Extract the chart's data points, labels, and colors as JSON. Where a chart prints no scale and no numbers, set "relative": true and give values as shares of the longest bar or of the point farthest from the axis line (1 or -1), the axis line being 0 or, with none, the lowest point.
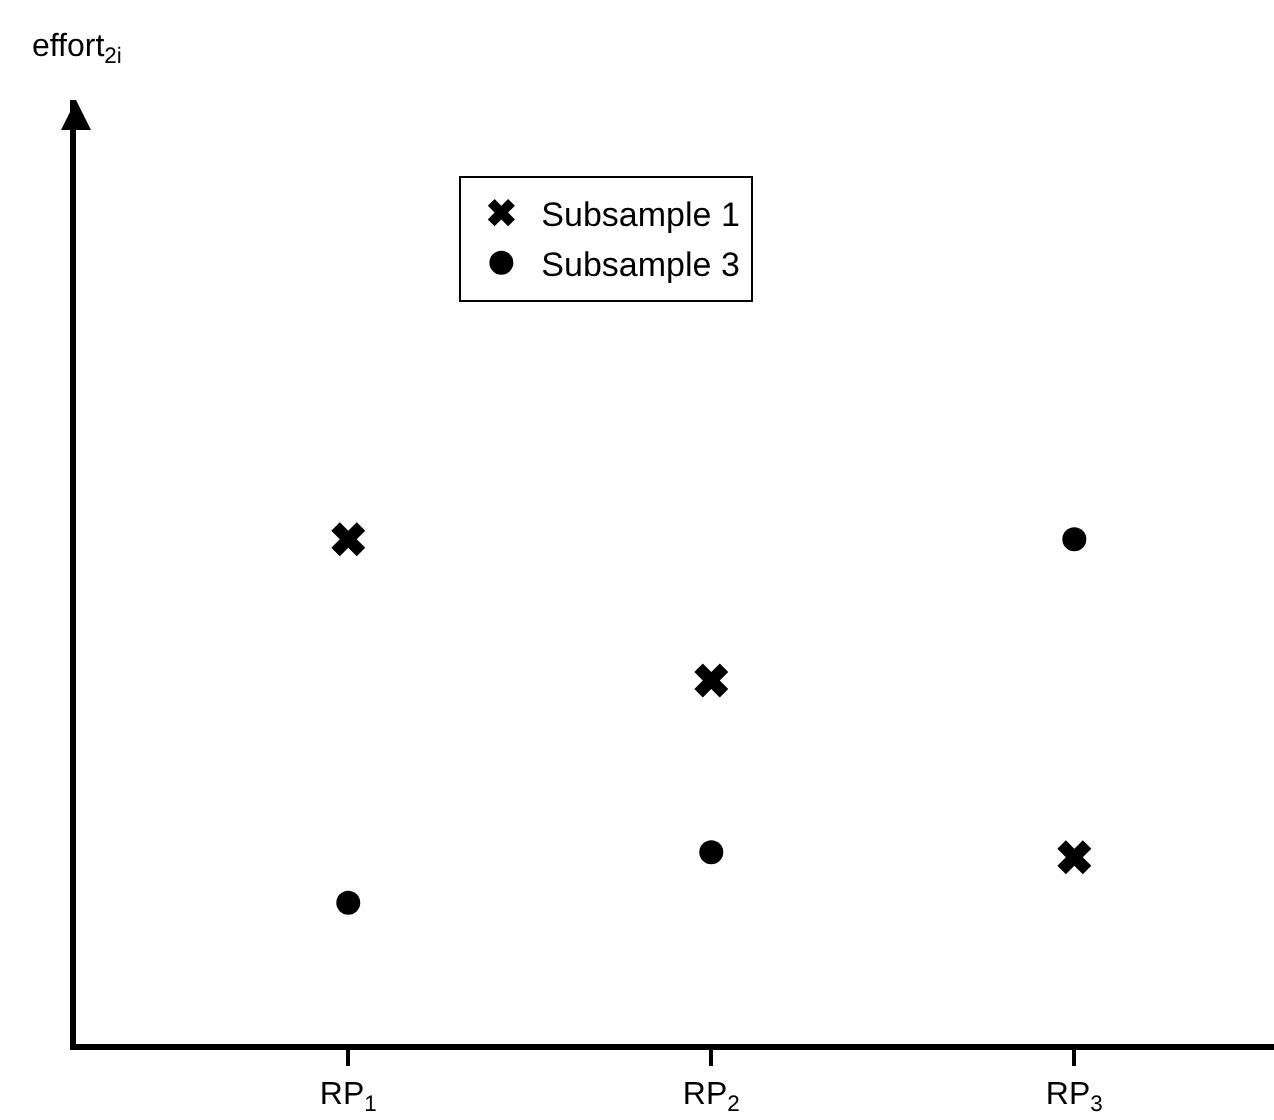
{
  "chart_data": {
    "type": "scatter",
    "annotations": [
      "effort$_{2i}$"
    ],
    "categories": [
      "RP$_{1}$",
      "RP$_{2}$",
      "RP$_{3}$"
    ],
    "relative": true,
    "legend": "top",
    "grid": false,
    "series": [
      {
        "name": "Subsample 1",
        "color": "#000000",
        "marker": "cross",
        "values": [
          1,
          0.72,
          0.37
        ]
      },
      {
        "name": "Subsample 3",
        "color": "#000000",
        "marker": "circle",
        "values": [
          0.28,
          0.38,
          1
        ]
      }
    ]
  }
}
